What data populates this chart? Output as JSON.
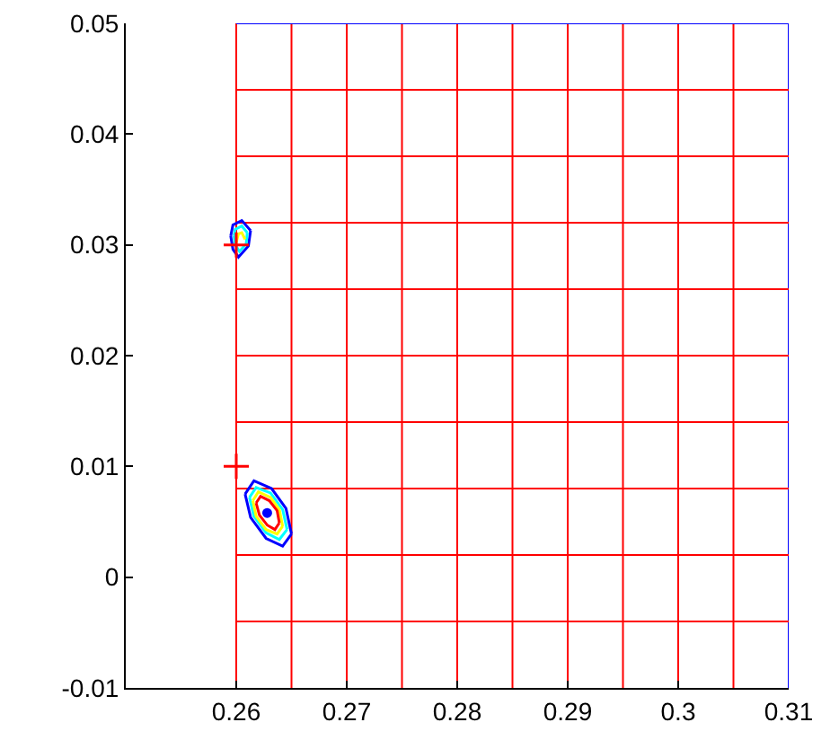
{
  "chart_data": {
    "type": "line",
    "xlim": [
      0.25,
      0.31
    ],
    "ylim": [
      -0.01,
      0.05
    ],
    "xticks": [
      0.26,
      0.27,
      0.28,
      0.29,
      0.3,
      0.31
    ],
    "yticks": [
      -0.01,
      0,
      0.01,
      0.02,
      0.03,
      0.04,
      0.05
    ],
    "ref_lines": [
      {
        "axis": "x",
        "value": 0.26,
        "color": "#ff0000"
      },
      {
        "axis": "x",
        "value": 0.265,
        "color": "#ff0000"
      },
      {
        "axis": "x",
        "value": 0.27,
        "color": "#ff0000"
      },
      {
        "axis": "x",
        "value": 0.275,
        "color": "#ff0000"
      },
      {
        "axis": "x",
        "value": 0.28,
        "color": "#ff0000"
      },
      {
        "axis": "x",
        "value": 0.285,
        "color": "#ff0000"
      },
      {
        "axis": "x",
        "value": 0.29,
        "color": "#ff0000"
      },
      {
        "axis": "x",
        "value": 0.295,
        "color": "#ff0000"
      },
      {
        "axis": "x",
        "value": 0.3,
        "color": "#ff0000"
      },
      {
        "axis": "x",
        "value": 0.305,
        "color": "#ff0000"
      },
      {
        "axis": "x",
        "value": 0.31,
        "color": "#0000ff"
      },
      {
        "axis": "y",
        "value": 0.05,
        "color": "#0000ff"
      },
      {
        "axis": "y",
        "value": 0.044,
        "color": "#ff0000"
      },
      {
        "axis": "y",
        "value": 0.038,
        "color": "#ff0000"
      },
      {
        "axis": "y",
        "value": 0.032,
        "color": "#ff0000"
      },
      {
        "axis": "y",
        "value": 0.026,
        "color": "#ff0000"
      },
      {
        "axis": "y",
        "value": 0.02,
        "color": "#ff0000"
      },
      {
        "axis": "y",
        "value": 0.014,
        "color": "#ff0000"
      },
      {
        "axis": "y",
        "value": 0.008,
        "color": "#ff0000"
      },
      {
        "axis": "y",
        "value": 0.002,
        "color": "#ff0000"
      },
      {
        "axis": "y",
        "value": -0.004,
        "color": "#ff0000"
      }
    ],
    "series": [
      {
        "color": "#0000ff",
        "x": [
          0.2608,
          0.2616,
          0.2632,
          0.2645,
          0.265
        ],
        "values": [
          0.0075,
          0.0087,
          0.008,
          0.0062,
          0.0039
        ]
      },
      {
        "color": "#0000ff",
        "x": [
          0.2608,
          0.2613,
          0.2627,
          0.2642,
          0.265
        ],
        "values": [
          0.0075,
          0.0054,
          0.0035,
          0.0028,
          0.0039
        ]
      },
      {
        "color": "#00ffff",
        "x": [
          0.2612,
          0.2618,
          0.2631,
          0.2642,
          0.2646
        ],
        "values": [
          0.0072,
          0.0081,
          0.0076,
          0.0061,
          0.0043
        ]
      },
      {
        "color": "#00ffff",
        "x": [
          0.2612,
          0.2616,
          0.2627,
          0.2639,
          0.2646
        ],
        "values": [
          0.0072,
          0.0055,
          0.004,
          0.0034,
          0.0043
        ]
      },
      {
        "color": "#ffff00",
        "x": [
          0.2615,
          0.262,
          0.2631,
          0.2639,
          0.2642
        ],
        "values": [
          0.0069,
          0.0077,
          0.0072,
          0.0061,
          0.0046
        ]
      },
      {
        "color": "#ffff00",
        "x": [
          0.2615,
          0.2618,
          0.2627,
          0.2637,
          0.2642
        ],
        "values": [
          0.0069,
          0.0055,
          0.0043,
          0.0039,
          0.0046
        ]
      },
      {
        "color": "#ff0000",
        "x": [
          0.2618,
          0.2622,
          0.263,
          0.2637,
          0.2639
        ],
        "values": [
          0.0067,
          0.0073,
          0.0069,
          0.006,
          0.0049
        ]
      },
      {
        "color": "#ff0000",
        "x": [
          0.2618,
          0.2621,
          0.2628,
          0.2635,
          0.2639
        ],
        "values": [
          0.0067,
          0.0056,
          0.0047,
          0.0043,
          0.0049
        ]
      },
      {
        "color": "#0000ff",
        "x": [
          0.2595,
          0.2597,
          0.2605,
          0.2613
        ],
        "values": [
          0.0308,
          0.0318,
          0.0322,
          0.0313
        ]
      },
      {
        "color": "#0000ff",
        "x": [
          0.2595,
          0.2597,
          0.2602,
          0.2611,
          0.2613
        ],
        "values": [
          0.0308,
          0.0296,
          0.0289,
          0.0299,
          0.0313
        ]
      },
      {
        "color": "#00ffff",
        "x": [
          0.2598,
          0.2599,
          0.2605,
          0.261
        ],
        "values": [
          0.0308,
          0.0314,
          0.0317,
          0.0311
        ]
      },
      {
        "color": "#00ffff",
        "x": [
          0.2598,
          0.2599,
          0.2603,
          0.2609,
          0.261
        ],
        "values": [
          0.0308,
          0.03,
          0.0294,
          0.0301,
          0.0311
        ]
      },
      {
        "color": "#ffff00",
        "x": [
          0.26,
          0.2602,
          0.2605,
          0.2608
        ],
        "values": [
          0.0302,
          0.031,
          0.0311,
          0.0305
        ]
      },
      {
        "type": "scatter",
        "marker": "circle",
        "color": "#0000ff",
        "x": [
          0.2628
        ],
        "values": [
          0.0058
        ]
      },
      {
        "type": "scatter",
        "marker": "cross",
        "color": "#ff0000",
        "x": [
          0.26,
          0.26
        ],
        "values": [
          0.03,
          0.01
        ]
      }
    ]
  }
}
